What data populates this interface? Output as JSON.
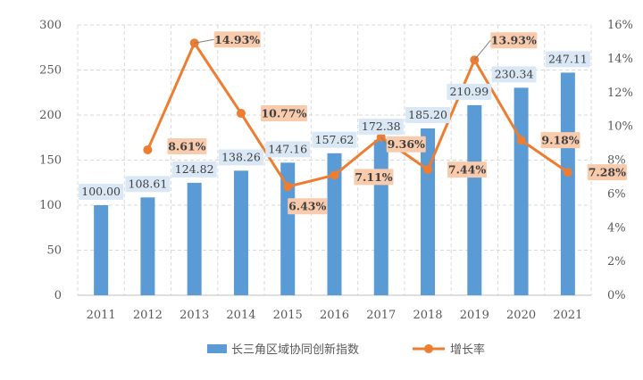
{
  "chart_data": {
    "type": "bar",
    "categories": [
      "2011",
      "2012",
      "2013",
      "2014",
      "2015",
      "2016",
      "2017",
      "2018",
      "2019",
      "2020",
      "2021"
    ],
    "series": [
      {
        "name": "长三角区域协同创新指数",
        "type": "bar",
        "axis": "left",
        "values": [
          100.0,
          108.61,
          124.82,
          138.26,
          147.16,
          157.62,
          172.38,
          185.2,
          210.99,
          230.34,
          247.11
        ],
        "labels": [
          "100.00",
          "108.61",
          "124.82",
          "138.26",
          "147.16",
          "157.62",
          "172.38",
          "185.20",
          "210.99",
          "230.34",
          "247.11"
        ],
        "color": "#5b9bd5"
      },
      {
        "name": "增长率",
        "type": "line",
        "axis": "right",
        "values": [
          null,
          8.61,
          14.93,
          10.77,
          6.43,
          7.11,
          9.36,
          7.44,
          13.93,
          9.18,
          7.28
        ],
        "labels": [
          "",
          "8.61%",
          "14.93%",
          "10.77%",
          "6.43%",
          "7.11%",
          "9.36%",
          "7.44%",
          "13.93%",
          "9.18%",
          "7.28%"
        ],
        "color": "#ed7d31"
      }
    ],
    "y_left": {
      "ylim": [
        0,
        300
      ],
      "ticks": [
        "0",
        "50",
        "100",
        "150",
        "200",
        "250",
        "300"
      ]
    },
    "y_right": {
      "ylim": [
        0,
        16
      ],
      "ticks": [
        "0%",
        "2%",
        "4%",
        "6%",
        "8%",
        "10%",
        "12%",
        "14%",
        "16%"
      ]
    },
    "grid": true,
    "legend": "bottom",
    "title": "",
    "xlabel": "",
    "ylabel": ""
  }
}
